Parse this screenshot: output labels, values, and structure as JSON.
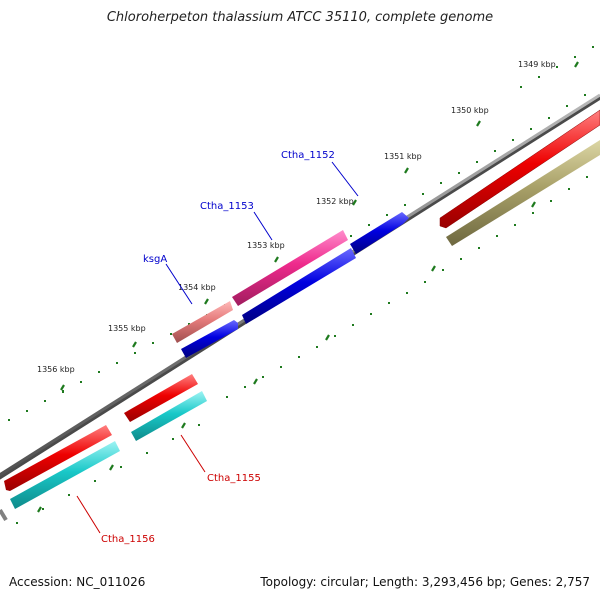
{
  "header": {
    "title": "Chloroherpeton thalassium ATCC 35110, complete genome"
  },
  "footer": {
    "accession": "Accession: NC_011026",
    "summary": "Topology: circular; Length: 3,293,456 bp; Genes: 2,757"
  },
  "scale": {
    "ticks": [
      {
        "label": "1349 kbp"
      },
      {
        "label": "1350 kbp"
      },
      {
        "label": "1351 kbp"
      },
      {
        "label": "1352 kbp"
      },
      {
        "label": "1353 kbp"
      },
      {
        "label": "1354 kbp"
      },
      {
        "label": "1355 kbp"
      },
      {
        "label": "1356 kbp"
      }
    ]
  },
  "genes": {
    "labels": [
      {
        "name": "Ctha_1152",
        "color": "#0000cc"
      },
      {
        "name": "Ctha_1153",
        "color": "#0000cc"
      },
      {
        "name": "ksgA",
        "color": "#0000cc"
      },
      {
        "name": "Ctha_1155",
        "color": "#cc0000"
      },
      {
        "name": "Ctha_1156",
        "color": "#cc0000"
      }
    ]
  },
  "colors": {
    "backbone": "#808080",
    "forward_red": "#ee0000",
    "magenta": "#ee2a8c",
    "salmon": "#e57b7b",
    "blue": "#0000e0",
    "cyan": "#19c8c8",
    "olive": "#a8a068",
    "tick_green": "#1e7a1e"
  }
}
